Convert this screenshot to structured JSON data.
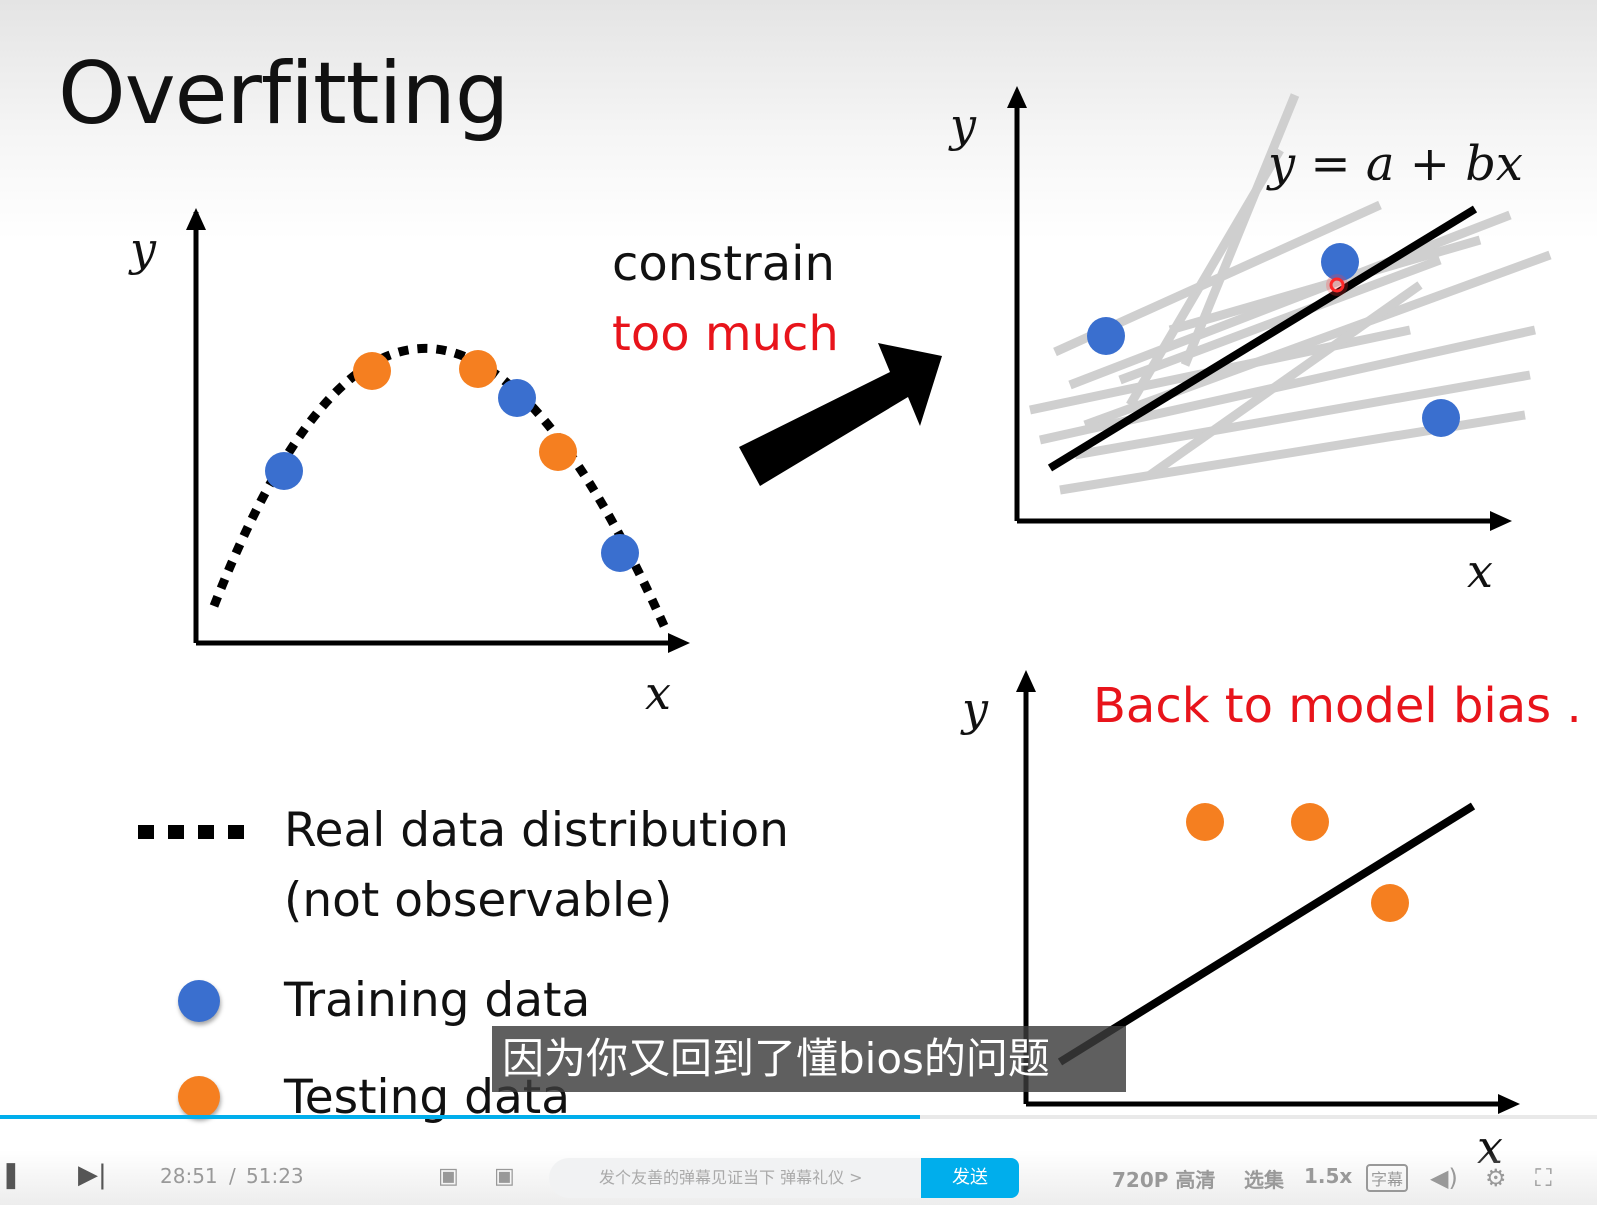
{
  "slide": {
    "title": "Overfitting",
    "left_plot": {
      "x_label": "x",
      "y_label": "y"
    },
    "arrow_text_line1": "constrain",
    "arrow_text_line2": "too much",
    "top_right_plot": {
      "x_label": "x",
      "y_label": "y",
      "equation": "y = a + bx"
    },
    "bottom_right_plot": {
      "x_label": "x",
      "y_label": "y",
      "caption": "Back to model bias ."
    },
    "legend": {
      "real_line1": "Real data distribution",
      "real_line2": "(not observable)",
      "training": "Training data",
      "testing": "Testing data"
    },
    "colors": {
      "training": "#3a6fcf",
      "testing": "#f57f20",
      "accent_red": "#e8141b"
    }
  },
  "subtitle": "因为你又回到了懂bios的问题",
  "player": {
    "progress_fraction": 0.576,
    "current_time": "28:51",
    "separator": "/",
    "total_time": "51:23",
    "danmu_placeholder": "发个友善的弹幕见证当下 弹幕礼仪 >",
    "send_label": "发送",
    "quality": "720P 高清",
    "episodes": "选集",
    "speed": "1.5x",
    "subtitle_btn": "字幕",
    "icons": [
      "play-pause-icon",
      "next-icon",
      "danmu-toggle-icon",
      "danmu-settings-icon",
      "volume-icon",
      "settings-icon",
      "fullscreen-icon"
    ]
  }
}
